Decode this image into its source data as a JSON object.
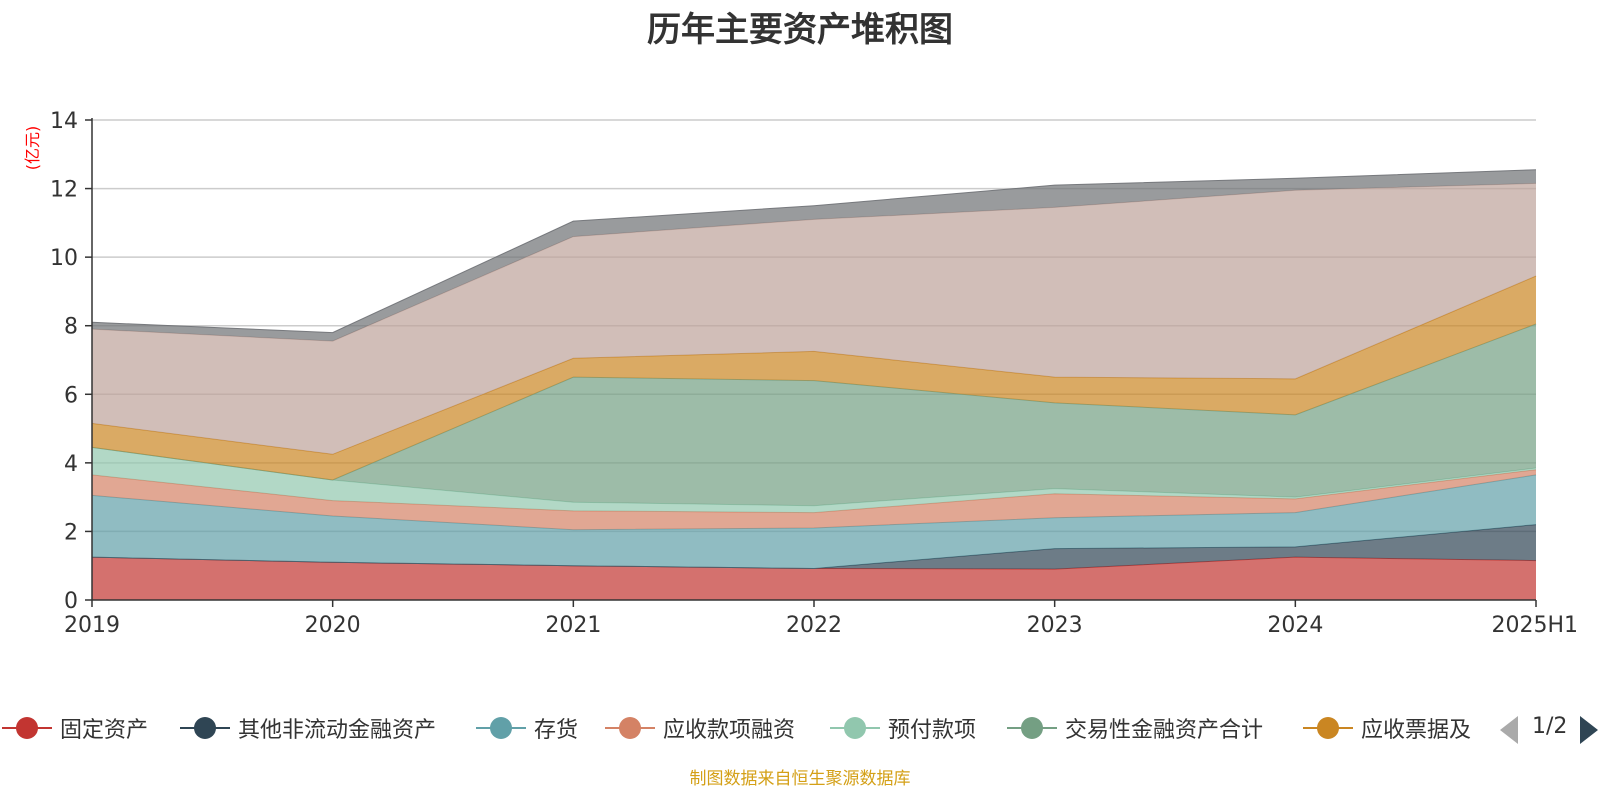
{
  "title": "历年主要资产堆积图",
  "footer": "制图数据来自恒生聚源数据库",
  "pager": {
    "text": "1/2"
  },
  "legend": [
    {
      "name": "固定资产",
      "color": "#c23531"
    },
    {
      "name": "其他非流动金融资产",
      "color": "#2f4554"
    },
    {
      "name": "存货",
      "color": "#61a0a8"
    },
    {
      "name": "应收款项融资",
      "color": "#d48265"
    },
    {
      "name": "预付款项",
      "color": "#91c7ae"
    },
    {
      "name": "交易性金融资产合计",
      "color": "#749f83"
    },
    {
      "name": "应收票据及",
      "color": "#ca8622"
    }
  ],
  "chart_data": {
    "type": "area",
    "stacked": true,
    "title": "历年主要资产堆积图",
    "ylabel": "(亿元)",
    "ylim": [
      0,
      14
    ],
    "yticks": [
      0,
      2,
      4,
      6,
      8,
      10,
      12,
      14
    ],
    "grid": true,
    "legend_position": "bottom",
    "categories": [
      "2019",
      "2020",
      "2021",
      "2022",
      "2023",
      "2024",
      "2025H1"
    ],
    "series": [
      {
        "name": "固定资产",
        "color": "#c23531",
        "values": [
          1.25,
          1.1,
          1.0,
          0.92,
          0.9,
          1.25,
          1.15
        ]
      },
      {
        "name": "其他非流动金融资产",
        "color": "#2f4554",
        "values": [
          0,
          0,
          0,
          0,
          0.6,
          0.3,
          1.05
        ]
      },
      {
        "name": "存货",
        "color": "#61a0a8",
        "values": [
          1.8,
          1.35,
          1.05,
          1.18,
          0.9,
          1.0,
          1.45
        ]
      },
      {
        "name": "应收款项融资",
        "color": "#d48265",
        "values": [
          0.6,
          0.45,
          0.55,
          0.45,
          0.7,
          0.4,
          0.15
        ]
      },
      {
        "name": "预付款项",
        "color": "#91c7ae",
        "values": [
          0.8,
          0.6,
          0.25,
          0.2,
          0.15,
          0.05,
          0.05
        ]
      },
      {
        "name": "交易性金融资产合计",
        "color": "#749f83",
        "values": [
          0,
          0,
          3.65,
          3.65,
          2.5,
          2.4,
          4.2
        ]
      },
      {
        "name": "应收票据及应收账款",
        "color": "#ca8622",
        "values": [
          0.7,
          0.75,
          0.55,
          0.85,
          0.75,
          1.05,
          1.4
        ]
      },
      {
        "color": "#bda29a",
        "values": [
          2.75,
          3.3,
          3.55,
          3.85,
          4.95,
          5.5,
          2.7
        ]
      },
      {
        "color": "#6e7074",
        "values": [
          0.2,
          0.25,
          0.45,
          0.4,
          0.65,
          0.35,
          0.4
        ]
      }
    ]
  }
}
